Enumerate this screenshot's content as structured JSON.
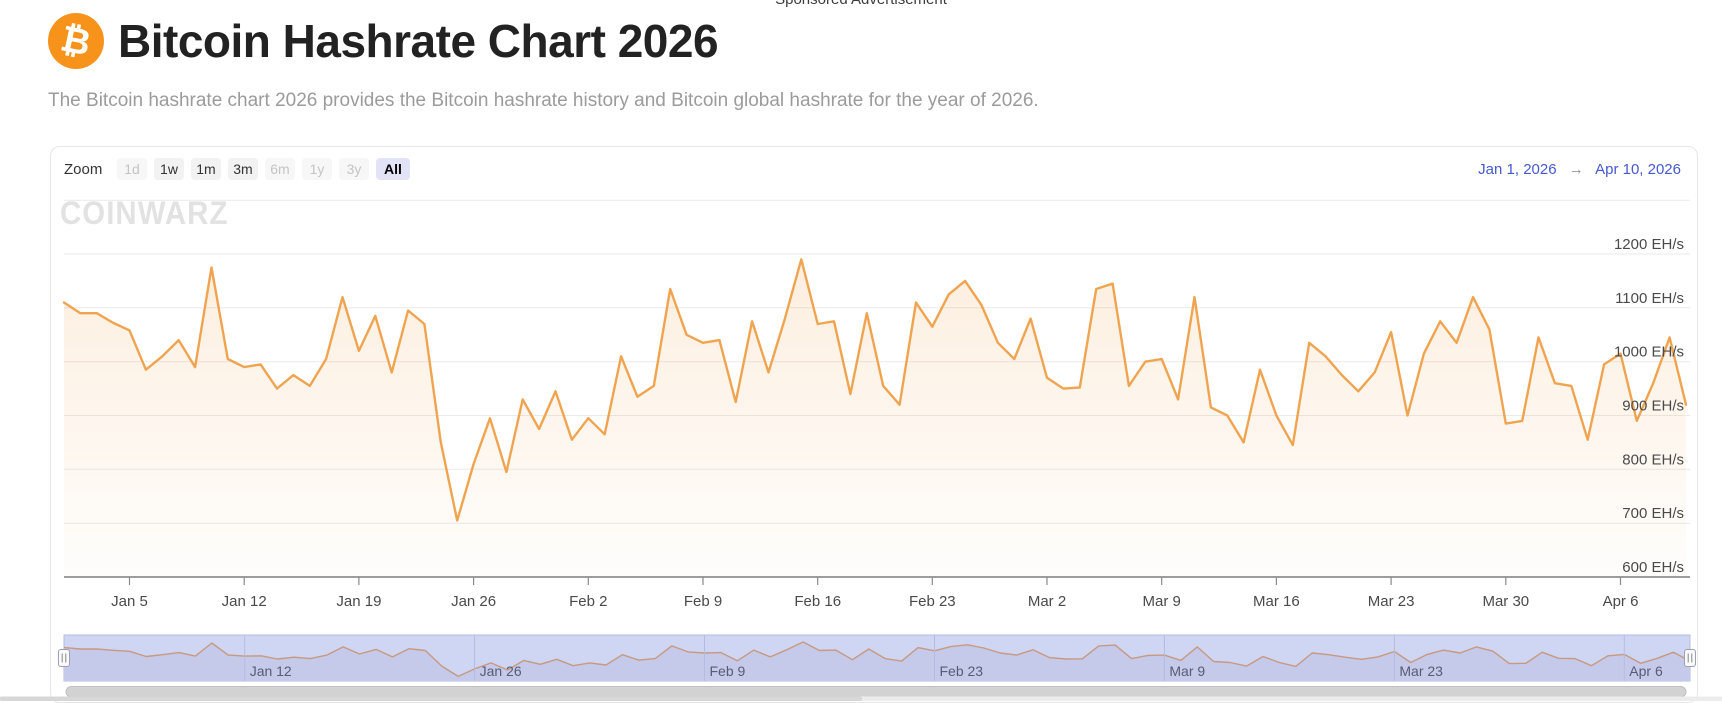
{
  "page": {
    "sponsored_label": "Sponsored Advertisement"
  },
  "header": {
    "bitcoin_icon": "₿",
    "title": "Bitcoin Hashrate Chart 2026",
    "subtitle": "The Bitcoin hashrate chart 2026 provides the Bitcoin hashrate history and Bitcoin global hashrate for the year of 2026."
  },
  "toolbar": {
    "zoom_label": "Zoom",
    "buttons": [
      {
        "label": "1d",
        "state": "disabled"
      },
      {
        "label": "1w",
        "state": "enabled"
      },
      {
        "label": "1m",
        "state": "enabled"
      },
      {
        "label": "3m",
        "state": "enabled"
      },
      {
        "label": "6m",
        "state": "disabled"
      },
      {
        "label": "1y",
        "state": "disabled"
      },
      {
        "label": "3y",
        "state": "disabled"
      },
      {
        "label": "All",
        "state": "active"
      }
    ],
    "range_from": "Jan 1, 2026",
    "range_arrow": "→",
    "range_to": "Apr 10, 2026"
  },
  "watermark": "CoinWarz",
  "colors": {
    "line_orange": "#f0a450",
    "bitcoin_orange": "#f7931a",
    "link_blue": "#4559cf",
    "navigator_fill": "#cfd6f3"
  },
  "chart_data": {
    "type": "area",
    "title": "Bitcoin Hashrate",
    "x_start_date": "Jan 1, 2026",
    "x_end_date": "Apr 10, 2026",
    "x_tick_labels": [
      "Jan 5",
      "Jan 12",
      "Jan 19",
      "Jan 26",
      "Feb 2",
      "Feb 9",
      "Feb 16",
      "Feb 23",
      "Mar 2",
      "Mar 9",
      "Mar 16",
      "Mar 23",
      "Mar 30",
      "Apr 6"
    ],
    "y_tick_labels": [
      "1200 EH/s",
      "1100 EH/s",
      "1000 EH/s",
      "900 EH/s",
      "800 EH/s",
      "700 EH/s",
      "600 EH/s"
    ],
    "y_unit": "EH/s",
    "ylim": [
      600,
      1300
    ],
    "grid": true,
    "legend": "none",
    "line_color": "#f0a450",
    "navigator_tick_labels": [
      "Jan 12",
      "Jan 26",
      "Feb 9",
      "Feb 23",
      "Mar 9",
      "Mar 23",
      "Apr 6"
    ],
    "dates": [
      "Jan 1",
      "Jan 2",
      "Jan 3",
      "Jan 4",
      "Jan 5",
      "Jan 6",
      "Jan 7",
      "Jan 8",
      "Jan 9",
      "Jan 10",
      "Jan 11",
      "Jan 12",
      "Jan 13",
      "Jan 14",
      "Jan 15",
      "Jan 16",
      "Jan 17",
      "Jan 18",
      "Jan 19",
      "Jan 20",
      "Jan 21",
      "Jan 22",
      "Jan 23",
      "Jan 24",
      "Jan 25",
      "Jan 26",
      "Jan 27",
      "Jan 28",
      "Jan 29",
      "Jan 30",
      "Jan 31",
      "Feb 1",
      "Feb 2",
      "Feb 3",
      "Feb 4",
      "Feb 5",
      "Feb 6",
      "Feb 7",
      "Feb 8",
      "Feb 9",
      "Feb 10",
      "Feb 11",
      "Feb 12",
      "Feb 13",
      "Feb 14",
      "Feb 15",
      "Feb 16",
      "Feb 17",
      "Feb 18",
      "Feb 19",
      "Feb 20",
      "Feb 21",
      "Feb 22",
      "Feb 23",
      "Feb 24",
      "Feb 25",
      "Feb 26",
      "Feb 27",
      "Feb 28",
      "Mar 1",
      "Mar 2",
      "Mar 3",
      "Mar 4",
      "Mar 5",
      "Mar 6",
      "Mar 7",
      "Mar 8",
      "Mar 9",
      "Mar 10",
      "Mar 11",
      "Mar 12",
      "Mar 13",
      "Mar 14",
      "Mar 15",
      "Mar 16",
      "Mar 17",
      "Mar 18",
      "Mar 19",
      "Mar 20",
      "Mar 21",
      "Mar 22",
      "Mar 23",
      "Mar 24",
      "Mar 25",
      "Mar 26",
      "Mar 27",
      "Mar 28",
      "Mar 29",
      "Mar 30",
      "Mar 31",
      "Apr 1",
      "Apr 2",
      "Apr 3",
      "Apr 4",
      "Apr 5",
      "Apr 6",
      "Apr 7",
      "Apr 8",
      "Apr 9",
      "Apr 10"
    ],
    "values": [
      1110,
      1090,
      1090,
      1072,
      1058,
      985,
      1010,
      1040,
      990,
      1175,
      1005,
      990,
      995,
      950,
      975,
      955,
      1005,
      1120,
      1020,
      1085,
      980,
      1095,
      1070,
      850,
      705,
      810,
      895,
      795,
      930,
      875,
      945,
      855,
      895,
      865,
      1010,
      935,
      955,
      1135,
      1050,
      1035,
      1040,
      925,
      1075,
      980,
      1080,
      1190,
      1070,
      1075,
      940,
      1090,
      955,
      920,
      1110,
      1065,
      1125,
      1150,
      1105,
      1035,
      1005,
      1080,
      970,
      950,
      952,
      1135,
      1145,
      955,
      1000,
      1005,
      930,
      1120,
      915,
      900,
      850,
      985,
      900,
      845,
      1035,
      1010,
      975,
      945,
      980,
      1055,
      900,
      1015,
      1075,
      1035,
      1120,
      1060,
      885,
      890,
      1045,
      960,
      955,
      855,
      995,
      1015,
      890,
      960,
      1045,
      920
    ]
  }
}
